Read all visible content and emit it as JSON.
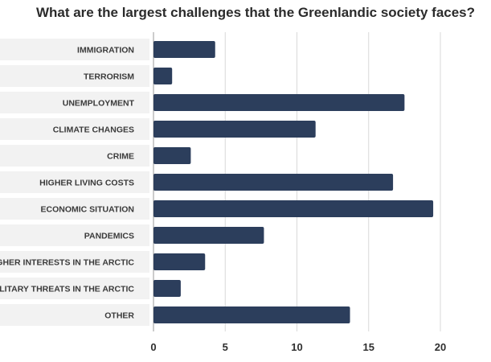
{
  "chart_data": {
    "type": "bar",
    "orientation": "horizontal",
    "title": "What are the largest challenges that the Greenlandic society faces?",
    "xlabel": "",
    "ylabel": "",
    "categories": [
      "IMMIGRATION",
      "TERRORISM",
      "UNEMPLOYMENT",
      "CLIMATE CHANGES",
      "CRIME",
      "HIGHER LIVING COSTS",
      "ECONOMIC SITUATION",
      "PANDEMICS",
      "HIGHER INTERESTS IN THE ARCTIC",
      "MILITARY THREATS IN THE ARCTIC",
      "OTHER"
    ],
    "values": [
      4.3,
      1.3,
      17.5,
      11.3,
      2.6,
      16.7,
      19.5,
      7.7,
      3.6,
      1.9,
      13.7
    ],
    "xlim": [
      0,
      25
    ],
    "xticks": [
      "0",
      "5",
      "10",
      "15",
      "20"
    ],
    "grid": "vertical",
    "colors": {
      "bar": "#2c3e5c",
      "label_band": "#f2f2f2",
      "grid": "#d9d9d9"
    }
  }
}
